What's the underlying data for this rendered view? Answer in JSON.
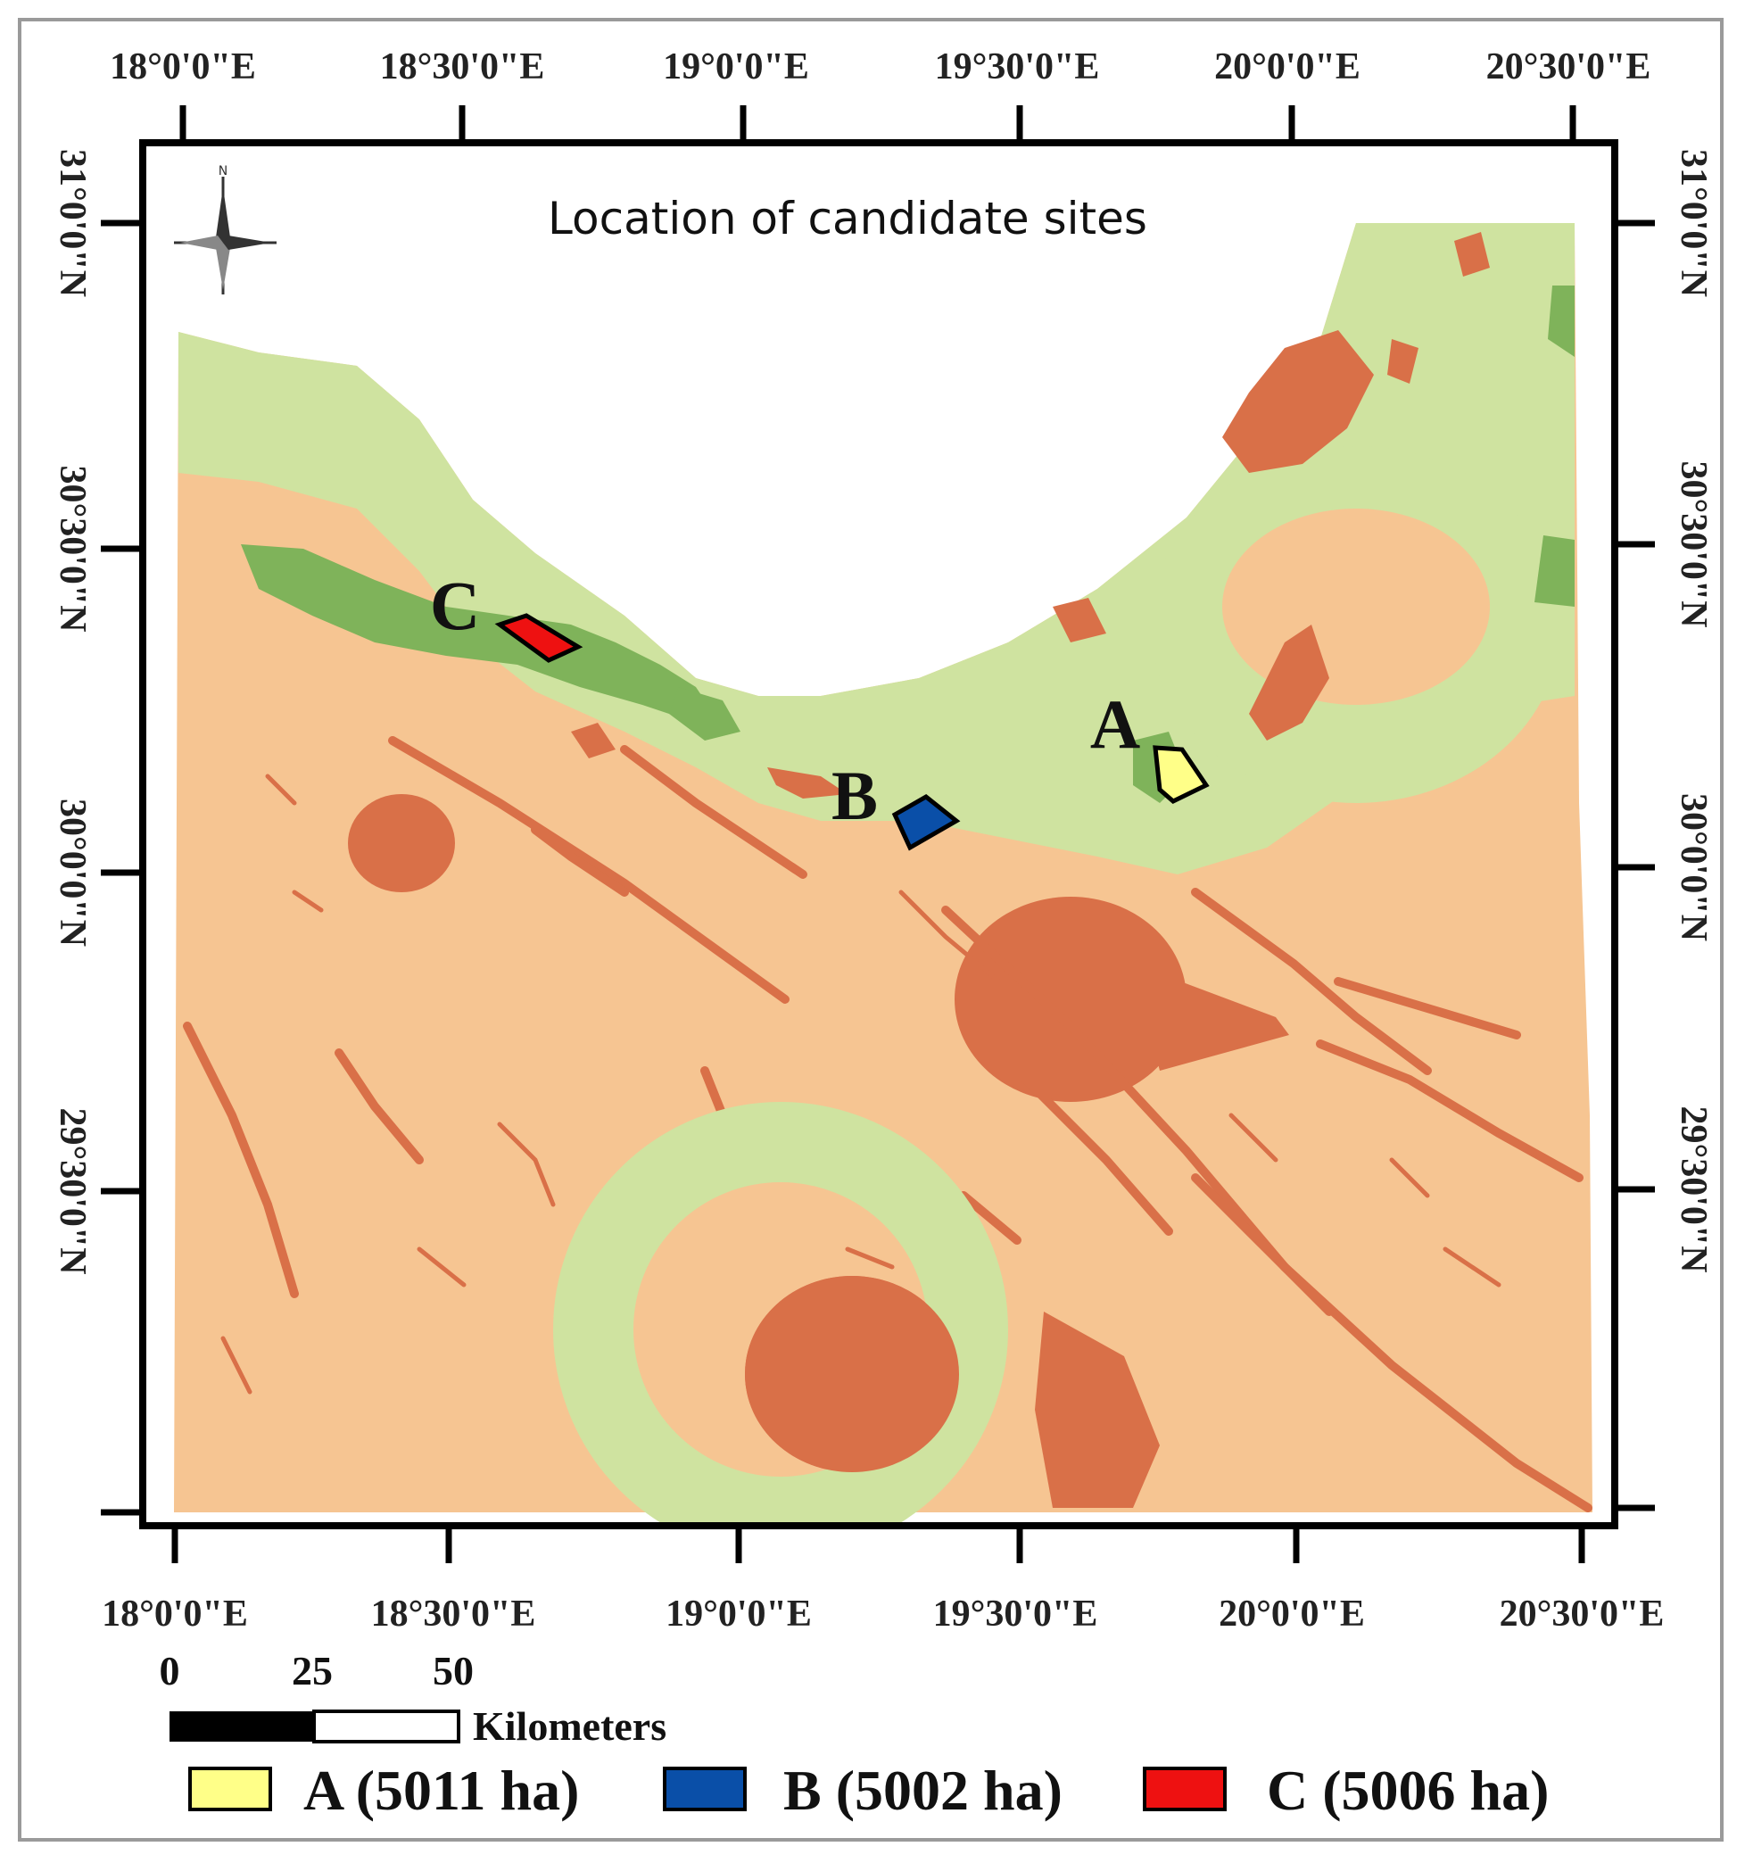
{
  "title": "Location of candidate sites",
  "compass": {
    "north_letter": "N",
    "icon": "north-arrow-compass-icon"
  },
  "colors": {
    "background_outside": "#ffffff",
    "suitability_low": "#f6c592",
    "suitability_mid": "#d97048",
    "suitability_high": "#cfe3a0",
    "suitability_highest": "#7fb35a",
    "site_a": "#ffff88",
    "site_b": "#0a4fa8",
    "site_c": "#ee1111"
  },
  "axes": {
    "top_labels": [
      "18°0'0\"E",
      "18°30'0\"E",
      "19°0'0\"E",
      "19°30'0\"E",
      "20°0'0\"E",
      "20°30'0\"E"
    ],
    "bottom_labels": [
      "18°0'0\"E",
      "18°30'0\"E",
      "19°0'0\"E",
      "19°30'0\"E",
      "20°0'0\"E",
      "20°30'0\"E"
    ],
    "left_labels": [
      "31°0'0\"N",
      "30°30'0\"N",
      "30°0'0\"N",
      "29°30'0\"N"
    ],
    "right_labels": [
      "31°0'0\"N",
      "30°30'0\"N",
      "30°0'0\"N",
      "29°30'0\"N"
    ]
  },
  "sites": [
    {
      "letter": "A",
      "area": "A (5011 ha)"
    },
    {
      "letter": "B",
      "area": "B (5002 ha)"
    },
    {
      "letter": "C",
      "area": "C (5006 ha)"
    }
  ],
  "scale_bar": {
    "ticks": [
      "0",
      "25",
      "50"
    ],
    "unit": "Kilometers"
  }
}
